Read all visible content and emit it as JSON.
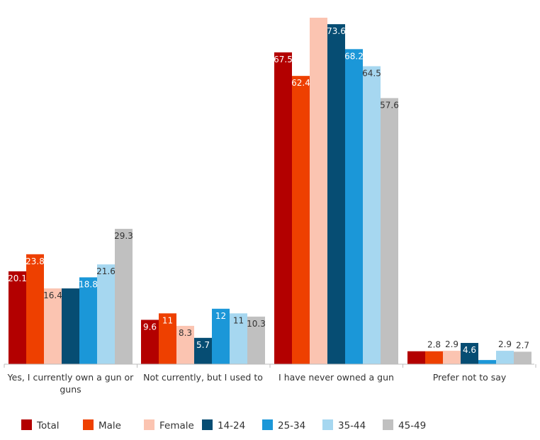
{
  "chart_data": {
    "type": "bar",
    "title": "",
    "xlabel": "",
    "ylabel": "",
    "ylim": [
      0,
      75
    ],
    "grid": false,
    "legend_position": "bottom",
    "categories": [
      [
        "Yes, I currently own a gun or",
        "guns"
      ],
      [
        "Not currently, but I used to"
      ],
      [
        "I have never owned a gun"
      ],
      [
        "Prefer not to say"
      ]
    ],
    "series": [
      {
        "name": "Total",
        "color": "#b30000",
        "values": [
          20.1,
          9.6,
          67.5,
          2.8
        ],
        "labels": [
          "20.1",
          "9.6",
          "67.5",
          ""
        ]
      },
      {
        "name": "Male",
        "color": "#ee4000",
        "values": [
          23.8,
          11,
          62.4,
          2.8
        ],
        "labels": [
          "23.8",
          "11",
          "62.4",
          "2.8"
        ]
      },
      {
        "name": "Female",
        "color": "#fbc4b1",
        "values": [
          16.4,
          8.3,
          75.0,
          2.9
        ],
        "labels": [
          "16.4",
          "8.3",
          "",
          "2.9"
        ]
      },
      {
        "name": "14-24",
        "color": "#064d73",
        "values": [
          16.4,
          5.7,
          73.6,
          4.6
        ],
        "labels": [
          "",
          "5.7",
          "73.6",
          "4.6"
        ]
      },
      {
        "name": "25-34",
        "color": "#1b97d8",
        "values": [
          18.8,
          12,
          68.2,
          0.9
        ],
        "labels": [
          "18.8",
          "12",
          "68.2",
          ""
        ]
      },
      {
        "name": "35-44",
        "color": "#a6d7f0",
        "values": [
          21.6,
          11,
          64.5,
          2.9
        ],
        "labels": [
          "21.6",
          "11",
          "64.5",
          "2.9"
        ]
      },
      {
        "name": "45-49",
        "color": "#c0c0c0",
        "values": [
          29.3,
          10.3,
          57.6,
          2.7
        ],
        "labels": [
          "29.3",
          "10.3",
          "57.6",
          "2.7"
        ]
      }
    ]
  }
}
